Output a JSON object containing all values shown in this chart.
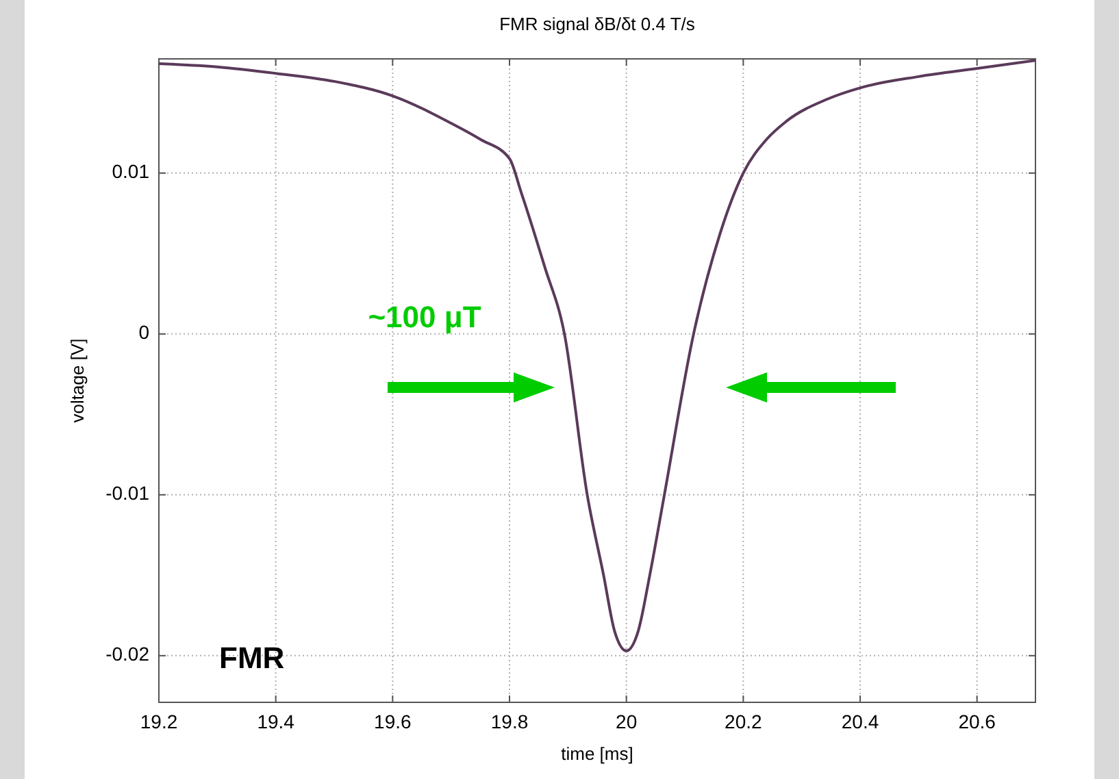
{
  "chart_data": {
    "type": "line",
    "title": "FMR signal δB/δt 0.4 T/s",
    "xlabel": "time [ms]",
    "ylabel": "voltage [V]",
    "annotations": [
      "~100 μT",
      "FMR"
    ],
    "x": [
      19.2,
      19.3,
      19.4,
      19.5,
      19.6,
      19.7,
      19.75,
      19.8,
      19.82,
      19.86,
      19.894,
      19.933,
      19.961,
      19.98,
      20,
      20.02,
      20.04,
      20.065,
      20.115,
      20.16,
      20.2,
      20.24,
      20.273,
      20.344,
      20.4,
      20.5,
      20.6,
      20.7
    ],
    "series": [
      {
        "color": "#5a3a5a",
        "values": [
          0.0168,
          0.0166,
          0.0162,
          0.0157,
          0.0148,
          0.0131,
          0.0121,
          0.0109,
          0.0088,
          0.0042,
          0,
          -0.01,
          -0.015,
          -0.0185,
          -0.0197,
          -0.0185,
          -0.015,
          -0.01,
          0,
          0.0062,
          0.01,
          0.0121,
          0.0132,
          0.0146,
          0.0153,
          0.016,
          0.0165,
          0.017
        ]
      }
    ],
    "xlim": [
      19.2,
      20.7
    ],
    "ylim": [
      -0.0229,
      0.0171
    ],
    "xticks": [
      19.2,
      19.4,
      19.6,
      19.8,
      20,
      20.2,
      20.4,
      20.6
    ],
    "yticks": [
      -0.02,
      -0.01,
      0,
      0.01
    ],
    "grid": true,
    "line_style": "solid",
    "marker": "none"
  }
}
